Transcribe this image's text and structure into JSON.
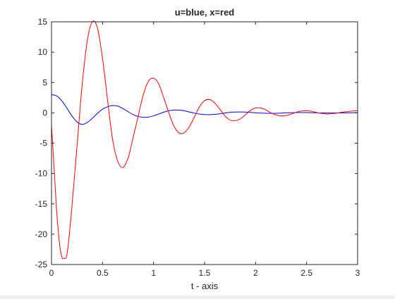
{
  "chart_data": {
    "type": "line",
    "title": "u=blue, x=red",
    "xlabel": "t - axis",
    "ylabel": "",
    "xlim": [
      0,
      3
    ],
    "ylim": [
      -25,
      15
    ],
    "xticks": [
      0,
      0.5,
      1,
      1.5,
      2,
      2.5,
      3
    ],
    "xtick_labels": [
      "0",
      "0.5",
      "1",
      "1.5",
      "2",
      "2.5",
      "3"
    ],
    "yticks": [
      -25,
      -20,
      -15,
      -10,
      -5,
      0,
      5,
      10,
      15
    ],
    "ytick_labels": [
      "-25",
      "-20",
      "-15",
      "-10",
      "-5",
      "0",
      "5",
      "10",
      "15"
    ],
    "grid": false,
    "series": [
      {
        "color": "#0000ff",
        "x": [
          0,
          0.05,
          0.1,
          0.15,
          0.2,
          0.25,
          0.3,
          0.35,
          0.4,
          0.45,
          0.5,
          0.55,
          0.6,
          0.65,
          0.7,
          0.75,
          0.8,
          0.85,
          0.9,
          0.95,
          1.0,
          1.05,
          1.1,
          1.15,
          1.2,
          1.25,
          1.3,
          1.35,
          1.4,
          1.45,
          1.5,
          1.55,
          1.6,
          1.65,
          1.7,
          1.75,
          1.8,
          1.85,
          1.9,
          1.95,
          2.0,
          2.05,
          2.1,
          2.15,
          2.2,
          2.25,
          2.3,
          2.35,
          2.4,
          2.45,
          2.5,
          2.55,
          2.6,
          2.65,
          2.7,
          2.75,
          2.8,
          2.85,
          2.9,
          2.95,
          3.0
        ],
        "values": [
          3.0,
          2.8,
          2.0,
          0.8,
          -0.5,
          -1.5,
          -1.9,
          -1.6,
          -0.9,
          -0.1,
          0.6,
          1.0,
          1.2,
          1.1,
          0.7,
          0.2,
          -0.3,
          -0.6,
          -0.75,
          -0.7,
          -0.5,
          -0.2,
          0.1,
          0.35,
          0.45,
          0.45,
          0.35,
          0.15,
          -0.05,
          -0.2,
          -0.28,
          -0.3,
          -0.25,
          -0.15,
          -0.03,
          0.07,
          0.13,
          0.15,
          0.12,
          0.07,
          0.0,
          -0.05,
          -0.08,
          -0.09,
          -0.07,
          -0.04,
          0.0,
          0.03,
          0.05,
          0.05,
          0.04,
          0.02,
          0.0,
          -0.02,
          -0.03,
          -0.03,
          -0.02,
          -0.01,
          0.0,
          0.01,
          0.01
        ]
      },
      {
        "color": "#ff0000",
        "x": [
          0,
          0.025,
          0.05,
          0.075,
          0.1,
          0.125,
          0.15,
          0.175,
          0.2,
          0.25,
          0.3,
          0.35,
          0.4,
          0.45,
          0.5,
          0.55,
          0.6,
          0.65,
          0.7,
          0.75,
          0.78,
          0.85,
          0.9,
          0.95,
          1.0,
          1.05,
          1.1,
          1.15,
          1.2,
          1.25,
          1.3,
          1.35,
          1.4,
          1.45,
          1.5,
          1.55,
          1.6,
          1.65,
          1.7,
          1.75,
          1.8,
          1.85,
          1.9,
          1.95,
          2.0,
          2.05,
          2.1,
          2.15,
          2.2,
          2.25,
          2.3,
          2.35,
          2.4,
          2.45,
          2.5,
          2.55,
          2.6,
          2.65,
          2.7,
          2.75,
          2.8,
          2.85,
          2.9,
          2.95,
          3.0
        ],
        "values": [
          -2.0,
          -9.0,
          -16.0,
          -21.0,
          -23.7,
          -24.0,
          -23.5,
          -20.0,
          -15.5,
          -5.5,
          4.5,
          11.8,
          15.0,
          14.0,
          9.0,
          2.0,
          -4.5,
          -8.0,
          -9.0,
          -7.5,
          -5.5,
          -0.5,
          3.0,
          5.2,
          5.7,
          4.8,
          2.5,
          0.0,
          -2.2,
          -3.3,
          -3.3,
          -2.3,
          -0.7,
          1.0,
          2.0,
          2.2,
          1.6,
          0.6,
          -0.5,
          -1.2,
          -1.3,
          -1.0,
          -0.3,
          0.4,
          0.8,
          0.8,
          0.5,
          0.0,
          -0.35,
          -0.5,
          -0.45,
          -0.2,
          0.1,
          0.3,
          0.35,
          0.25,
          0.05,
          -0.1,
          -0.2,
          -0.15,
          -0.05,
          0.1,
          0.2,
          0.3,
          0.35
        ]
      }
    ]
  }
}
